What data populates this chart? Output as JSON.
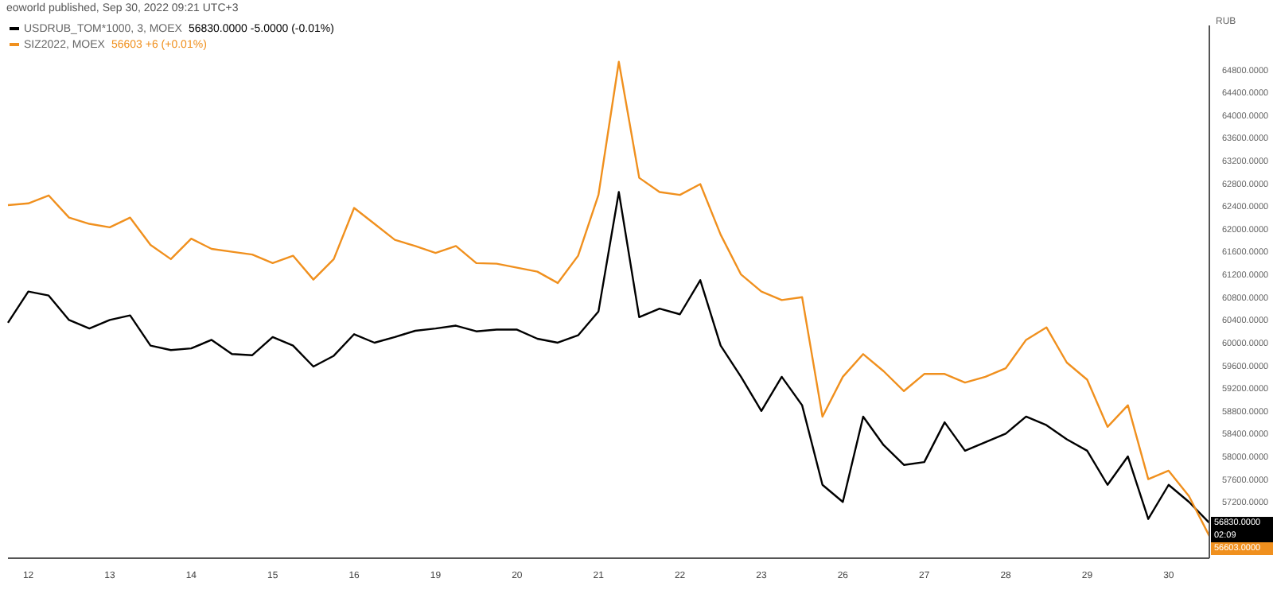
{
  "chart_data": {
    "type": "line",
    "title": "eoworld published, Sep 30, 2022 09:21 UTC+3",
    "ylabel": "RUB",
    "legend": "top left",
    "marker": "none",
    "line_style": "solid",
    "categories": [
      null,
      "12",
      null,
      null,
      null,
      "13",
      null,
      null,
      null,
      "14",
      null,
      null,
      null,
      "15",
      null,
      null,
      null,
      "16",
      null,
      null,
      null,
      "19",
      null,
      null,
      null,
      "20",
      null,
      null,
      null,
      "21",
      null,
      null,
      null,
      "22",
      null,
      null,
      null,
      "23",
      null,
      null,
      null,
      "26",
      null,
      null,
      null,
      "27",
      null,
      null,
      null,
      "28",
      null,
      null,
      null,
      "29",
      null,
      null,
      null,
      "30",
      null,
      null
    ],
    "ylim": [
      56210,
      65580
    ],
    "yticks": [
      {
        "value": 57200,
        "label": "57200.0000"
      },
      {
        "value": 57600,
        "label": "57600.0000"
      },
      {
        "value": 58000,
        "label": "58000.0000"
      },
      {
        "value": 58400,
        "label": "58400.0000"
      },
      {
        "value": 58800,
        "label": "58800.0000"
      },
      {
        "value": 59200,
        "label": "59200.0000"
      },
      {
        "value": 59600,
        "label": "59600.0000"
      },
      {
        "value": 60000,
        "label": "60000.0000"
      },
      {
        "value": 60400,
        "label": "60400.0000"
      },
      {
        "value": 60800,
        "label": "60800.0000"
      },
      {
        "value": 61200,
        "label": "61200.0000"
      },
      {
        "value": 61600,
        "label": "61600.0000"
      },
      {
        "value": 62000,
        "label": "62000.0000"
      },
      {
        "value": 62400,
        "label": "62400.0000"
      },
      {
        "value": 62800,
        "label": "62800.0000"
      },
      {
        "value": 63200,
        "label": "63200.0000"
      },
      {
        "value": 63600,
        "label": "63600.0000"
      },
      {
        "value": 64000,
        "label": "64000.0000"
      },
      {
        "value": 64400,
        "label": "64400.0000"
      },
      {
        "value": 64800,
        "label": "64800.0000"
      }
    ],
    "series": [
      {
        "name": "USDRUB_TOM*1000, 3, MOEX",
        "color": "#000000",
        "values": [
          60350,
          60900,
          60830,
          60400,
          60250,
          60400,
          60480,
          59950,
          59870,
          59900,
          60050,
          59800,
          59780,
          60100,
          59950,
          59580,
          59770,
          60150,
          60000,
          60100,
          60210,
          60250,
          60300,
          60200,
          60230,
          60230,
          60070,
          60000,
          60130,
          60550,
          62650,
          60450,
          60600,
          60500,
          61100,
          59950,
          59400,
          58800,
          59400,
          58900,
          57500,
          57200,
          58700,
          58200,
          57850,
          57900,
          58600,
          58100,
          58250,
          58400,
          58700,
          58550,
          58300,
          58100,
          57500,
          58000,
          56900,
          57500,
          57200,
          56830
        ]
      },
      {
        "name": "SIZ2022, MOEX",
        "color": "#f0901e",
        "values": [
          62420,
          62450,
          62590,
          62200,
          62090,
          62030,
          62200,
          61720,
          61470,
          61830,
          61650,
          61600,
          61550,
          61400,
          61530,
          61110,
          61470,
          62370,
          62090,
          61810,
          61700,
          61580,
          61700,
          61400,
          61390,
          61320,
          61250,
          61050,
          61530,
          62600,
          64940,
          62900,
          62650,
          62600,
          62790,
          61900,
          61200,
          60900,
          60750,
          60800,
          58700,
          59400,
          59800,
          59500,
          59150,
          59450,
          59450,
          59300,
          59400,
          59550,
          60050,
          60270,
          59650,
          59350,
          58520,
          58900,
          57600,
          57750,
          57300,
          56600
        ]
      }
    ],
    "annotations": [
      "56830.0000 -5.0000 (-0.01%)",
      "56603 +6 (+0.01%)",
      "56830.0000",
      "02:09",
      "56603.0000"
    ]
  }
}
